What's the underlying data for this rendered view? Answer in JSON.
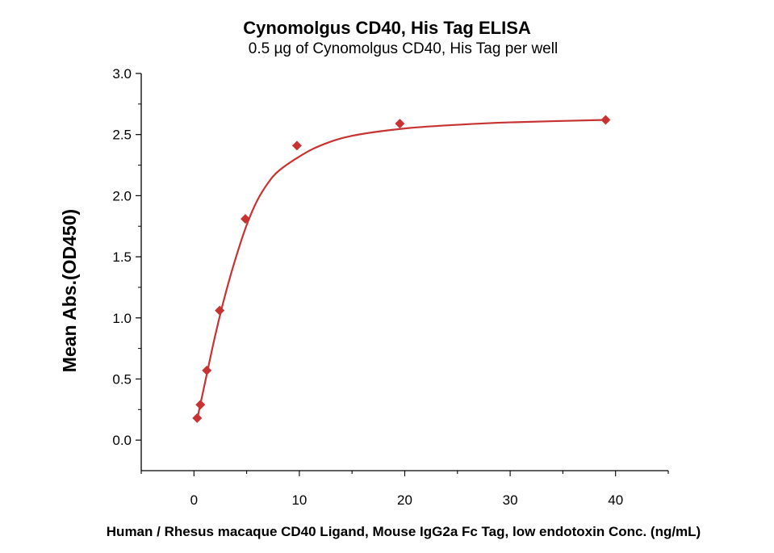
{
  "chart_data": {
    "type": "scatter",
    "title": "Cynomolgus CD40, His Tag ELISA",
    "subtitle": "0.5 µg of Cynomolgus CD40, His Tag per well",
    "xlabel": "Human / Rhesus macaque CD40 Ligand, Mouse IgG2a Fc Tag, low endotoxin Conc. (ng/mL)",
    "ylabel": "Mean Abs.(OD450)",
    "xlim": [
      -5,
      45
    ],
    "ylim": [
      -0.25,
      3.0
    ],
    "xticks": [
      0,
      10,
      20,
      30,
      40
    ],
    "xtick_labels": [
      "0",
      "10",
      "20",
      "30",
      "40"
    ],
    "yticks": [
      0,
      0.5,
      1.0,
      1.5,
      2.0,
      2.5,
      3.0
    ],
    "ytick_labels": [
      "0.0",
      "0.5",
      "1.0",
      "1.5",
      "2.0",
      "2.5",
      "3.0"
    ],
    "grid": false,
    "color": "#c83232",
    "series": [
      {
        "name": "data",
        "x": [
          0.305,
          0.61,
          1.22,
          2.44,
          4.88,
          9.77,
          19.53,
          39.06
        ],
        "y": [
          0.18,
          0.29,
          0.57,
          1.06,
          1.81,
          2.41,
          2.59,
          2.62
        ]
      }
    ],
    "fit_curve": {
      "x": [
        0.305,
        1,
        2,
        3,
        4,
        5,
        6,
        7,
        8,
        10,
        12,
        15,
        20,
        25,
        30,
        39.06
      ],
      "y": [
        0.17,
        0.45,
        0.85,
        1.2,
        1.5,
        1.76,
        1.96,
        2.1,
        2.2,
        2.32,
        2.41,
        2.49,
        2.55,
        2.58,
        2.6,
        2.62
      ]
    }
  }
}
